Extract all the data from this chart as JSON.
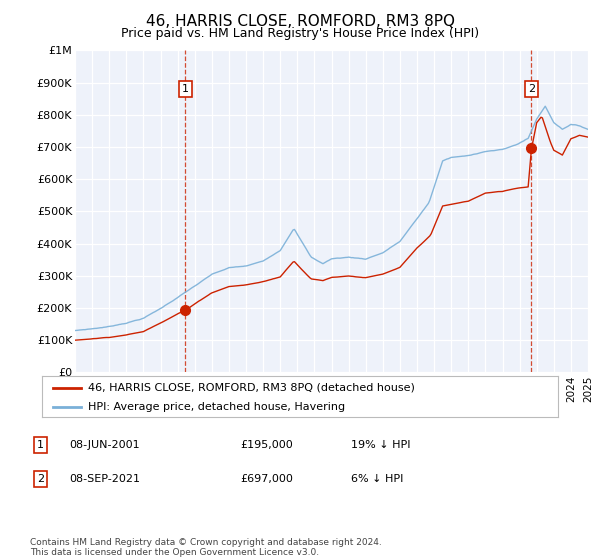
{
  "title": "46, HARRIS CLOSE, ROMFORD, RM3 8PQ",
  "subtitle": "Price paid vs. HM Land Registry's House Price Index (HPI)",
  "ylim": [
    0,
    1000000
  ],
  "yticks": [
    0,
    100000,
    200000,
    300000,
    400000,
    500000,
    600000,
    700000,
    800000,
    900000,
    1000000
  ],
  "ytick_labels": [
    "£0",
    "£100K",
    "£200K",
    "£300K",
    "£400K",
    "£500K",
    "£600K",
    "£700K",
    "£800K",
    "£900K",
    "£1M"
  ],
  "hpi_color": "#7ab0d8",
  "price_color": "#cc2200",
  "marker_color": "#cc2200",
  "dashed_color": "#cc2200",
  "background_chart": "#eef2fa",
  "background_fig": "#ffffff",
  "sale1_date_num": 2001.44,
  "sale1_price": 195000,
  "sale2_date_num": 2021.69,
  "sale2_price": 697000,
  "legend_line1": "46, HARRIS CLOSE, ROMFORD, RM3 8PQ (detached house)",
  "legend_line2": "HPI: Average price, detached house, Havering",
  "table_row1": [
    "1",
    "08-JUN-2001",
    "£195,000",
    "19% ↓ HPI"
  ],
  "table_row2": [
    "2",
    "08-SEP-2021",
    "£697,000",
    "6% ↓ HPI"
  ],
  "footnote": "Contains HM Land Registry data © Crown copyright and database right 2024.\nThis data is licensed under the Open Government Licence v3.0.",
  "xmin": 1995,
  "xmax": 2025
}
